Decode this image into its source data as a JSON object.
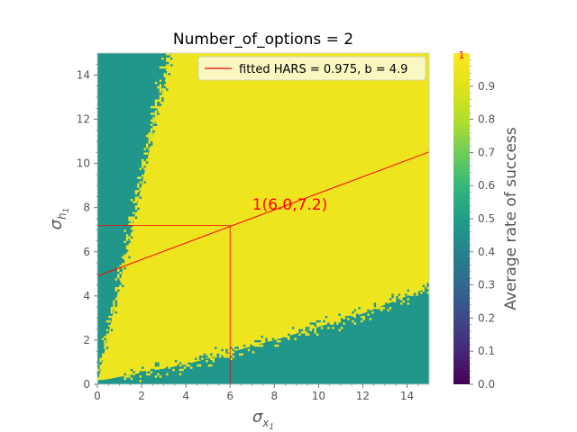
{
  "chart_data": {
    "type": "heatmap",
    "title": "Number_of_options = 2",
    "xlabel": "σ_{x_1}",
    "ylabel": "σ_{h_1}",
    "xlim": [
      0,
      15
    ],
    "ylim": [
      0,
      15
    ],
    "x_ticks": [
      "0",
      "2",
      "4",
      "6",
      "8",
      "10",
      "12",
      "14"
    ],
    "y_ticks": [
      "0",
      "2",
      "4",
      "6",
      "8",
      "10",
      "12",
      "14"
    ],
    "colorbar": {
      "label": "Average rate of success",
      "range": [
        0,
        1
      ],
      "ticks": [
        "0.0",
        "0.1",
        "0.2",
        "0.3",
        "0.4",
        "0.5",
        "0.6",
        "0.7",
        "0.8",
        "0.9"
      ],
      "top_marker": "1",
      "colormap": "viridis"
    },
    "heatmap_values": {
      "success_region": 0.95,
      "failure_region": 0.47,
      "upper_boundary_slope": 4.5,
      "lower_boundary_points": [
        [
          0.3,
          0.2
        ],
        [
          4,
          0.9
        ],
        [
          8,
          2.0
        ],
        [
          12,
          3.2
        ],
        [
          15,
          4.4
        ]
      ]
    },
    "fit_line": {
      "legend": "fitted HARS = 0.975, b = 4.9",
      "intercept": 4.9,
      "slope": 0.375,
      "color": "#ff0000"
    },
    "annotation": {
      "text": "1(6.0,7.2)",
      "point": [
        6.0,
        7.2
      ],
      "text_pos": [
        7.0,
        7.9
      ]
    },
    "grid": false,
    "legend_placement": "top-right"
  }
}
